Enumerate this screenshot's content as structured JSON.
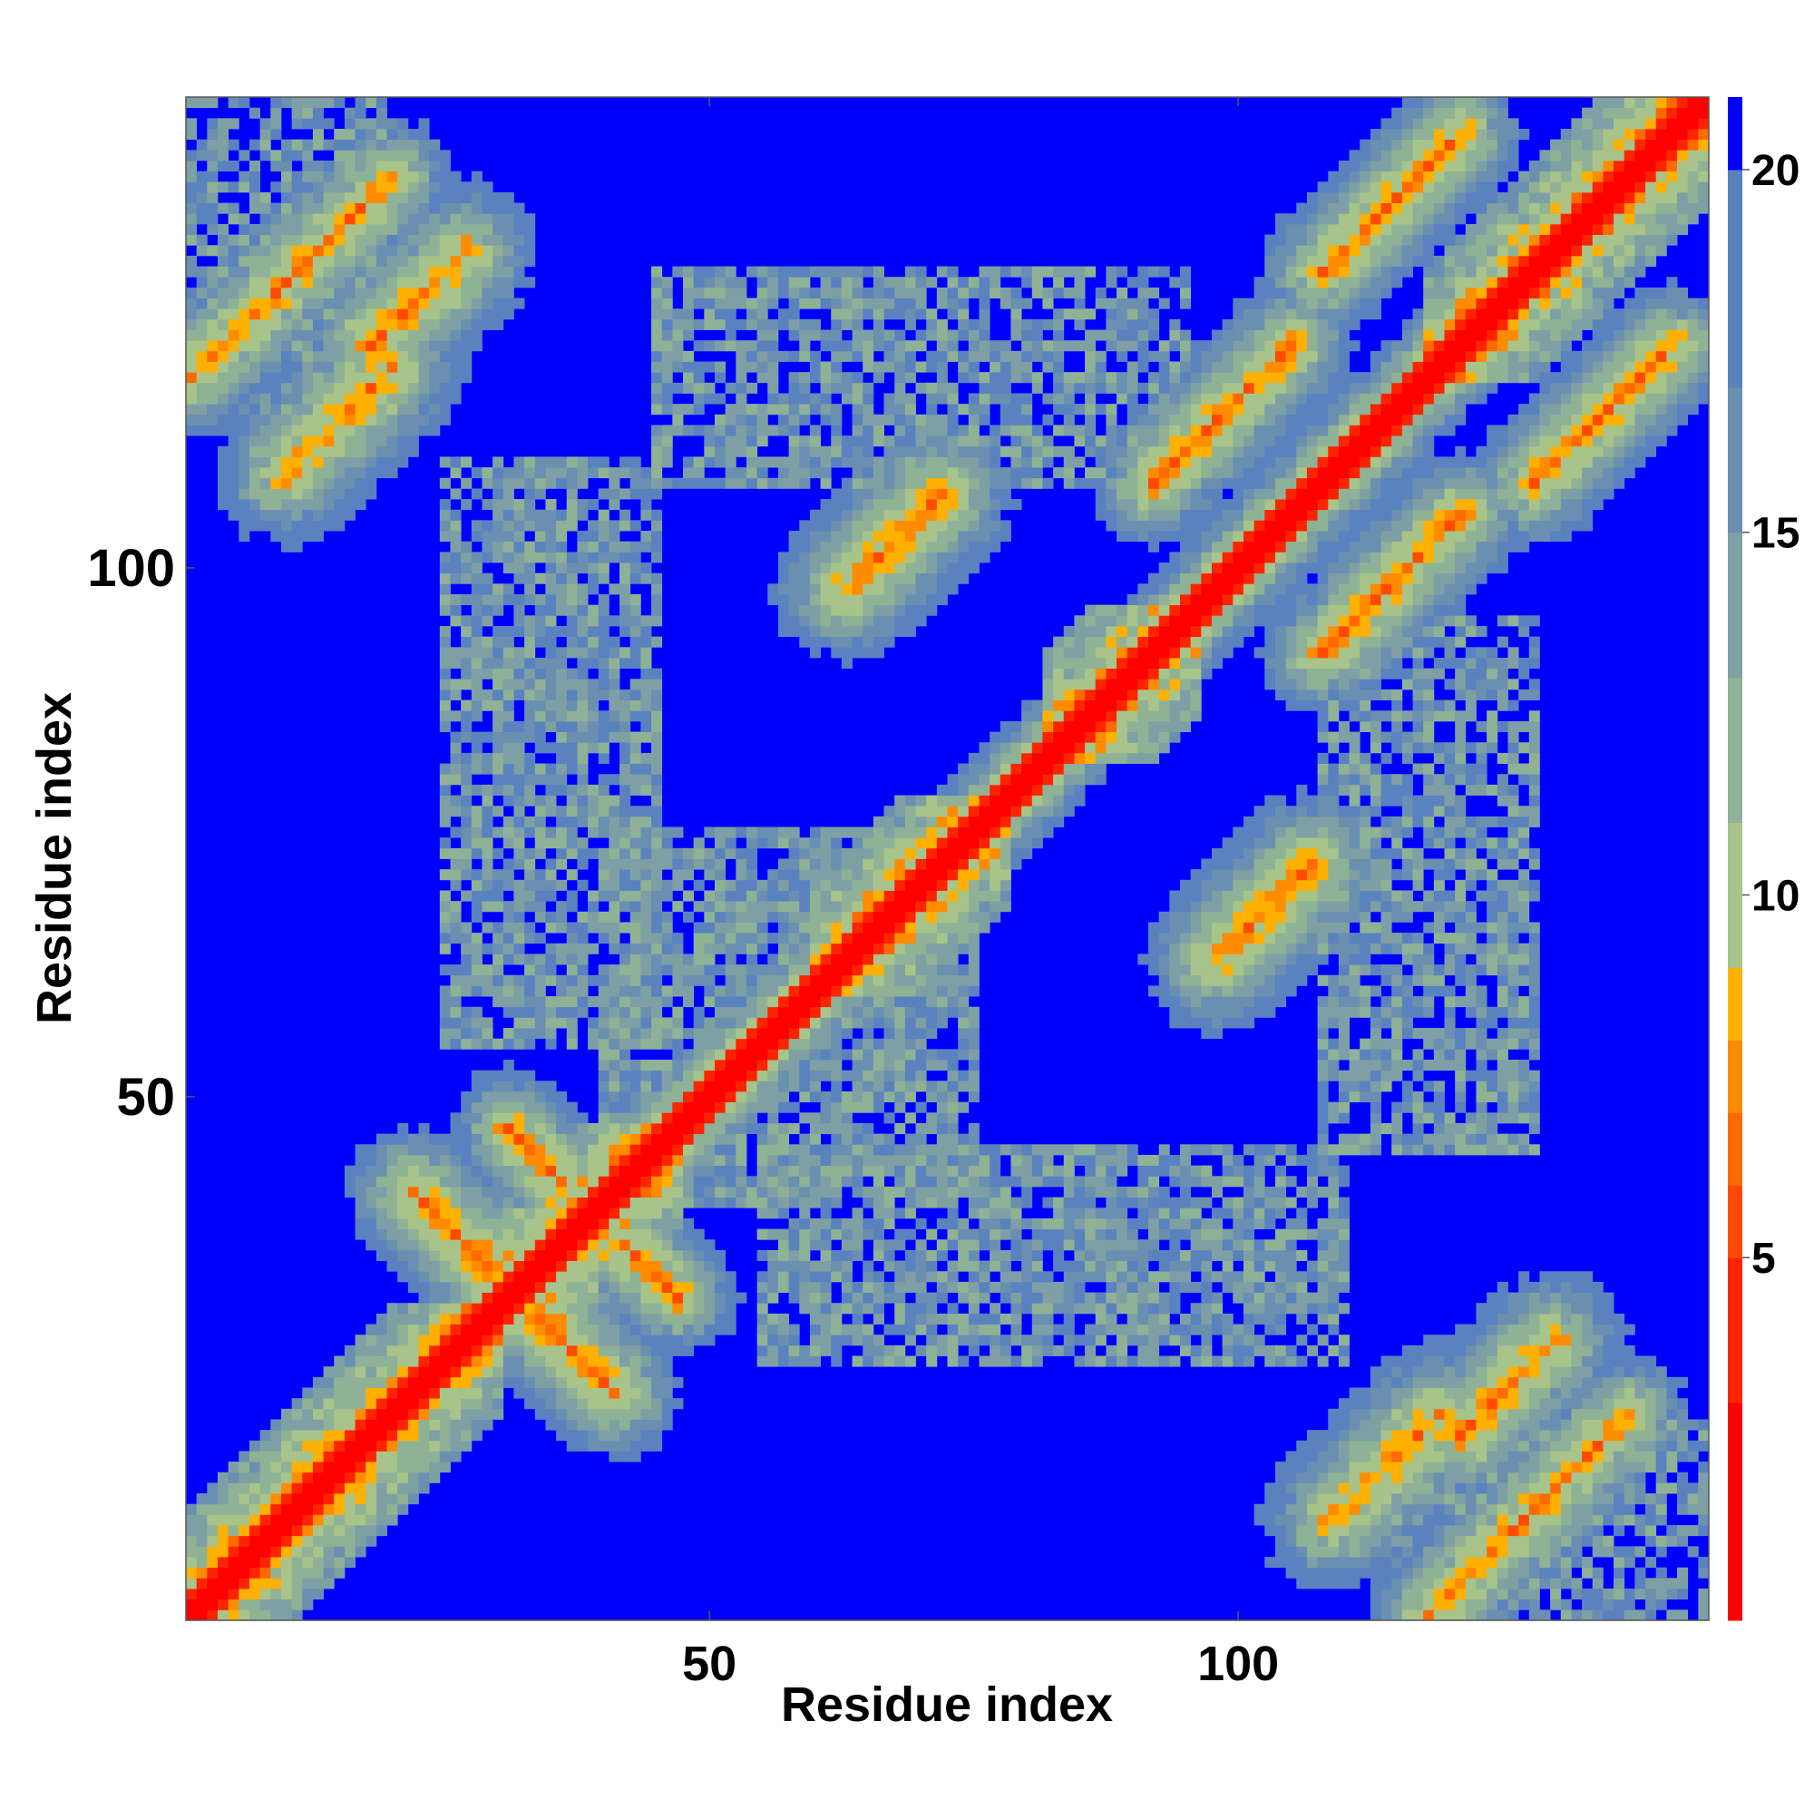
{
  "chart_data": {
    "type": "heatmap",
    "description_hidden": false,
    "xlabel": "Residue index",
    "ylabel": "Residue index",
    "x_ticks": [
      "50",
      "100"
    ],
    "y_ticks": [
      "50",
      "100"
    ],
    "x_tick_values": [
      50,
      100
    ],
    "y_tick_values": [
      50,
      100
    ],
    "xlim": [
      1,
      144
    ],
    "ylim": [
      1,
      144
    ],
    "n_residues": 144,
    "colorbar": {
      "ticks": [
        "5",
        "10",
        "15",
        "20"
      ],
      "tick_values": [
        5,
        10,
        15,
        20
      ],
      "range": [
        0,
        21
      ],
      "colors": [
        "#ff0000",
        "#ff2400",
        "#ff4a00",
        "#ff6a00",
        "#ff8c00",
        "#ffb000",
        "#a8c48a",
        "#8fb296",
        "#7ea0a4",
        "#6a8fb0",
        "#5a82be",
        "#0000ff"
      ]
    },
    "grid": false,
    "legend": "colorbar-right",
    "contact_features": [
      {
        "kind": "diagonal",
        "width": 2.2
      },
      {
        "kind": "helix",
        "start": 1,
        "end": 30,
        "width": 4
      },
      {
        "kind": "helix",
        "start": 31,
        "end": 47,
        "width": 3.5
      },
      {
        "kind": "helix",
        "start": 60,
        "end": 78,
        "width": 4.5
      },
      {
        "kind": "helix",
        "start": 82,
        "end": 96,
        "width": 4
      },
      {
        "kind": "helix",
        "start": 118,
        "end": 144,
        "width": 3.5
      },
      {
        "kind": "anti",
        "i0": 22,
        "j0": 34,
        "len": 8,
        "width": 3.5
      },
      {
        "kind": "anti",
        "i0": 31,
        "j0": 42,
        "len": 6,
        "width": 3
      },
      {
        "kind": "para",
        "i0": 18,
        "j0": 121,
        "len": 10,
        "width": 3.5
      },
      {
        "kind": "para",
        "i0": 109,
        "j0": 10,
        "len": 11,
        "width": 3.5
      },
      {
        "kind": "para",
        "i0": 1,
        "j0": 118,
        "len": 20,
        "width": 3
      },
      {
        "kind": "para",
        "i0": 108,
        "j0": 128,
        "len": 14,
        "width": 3
      },
      {
        "kind": "para",
        "i0": 128,
        "j0": 108,
        "len": 14,
        "width": 3
      },
      {
        "kind": "para",
        "i0": 63,
        "j0": 98,
        "len": 10,
        "width": 3.5
      },
      {
        "kind": "para",
        "i0": 98,
        "j0": 63,
        "len": 10,
        "width": 3.5
      },
      {
        "kind": "para",
        "i0": 92,
        "j0": 108,
        "len": 14,
        "width": 3
      },
      {
        "kind": "para",
        "i0": 108,
        "j0": 92,
        "len": 14,
        "width": 3
      },
      {
        "kind": "block",
        "i0": 25,
        "i1": 45,
        "j0": 55,
        "j1": 110,
        "density": 0.55
      },
      {
        "kind": "block",
        "i0": 55,
        "i1": 110,
        "j0": 25,
        "j1": 45,
        "density": 0.55
      },
      {
        "kind": "block",
        "i0": 40,
        "i1": 75,
        "j0": 40,
        "j1": 75,
        "density": 0.6
      },
      {
        "kind": "block",
        "i0": 45,
        "i1": 95,
        "j0": 108,
        "j1": 128,
        "density": 0.5
      },
      {
        "kind": "block",
        "i0": 108,
        "i1": 128,
        "j0": 45,
        "j1": 95,
        "density": 0.5
      },
      {
        "kind": "block",
        "i0": 115,
        "i1": 144,
        "j0": 1,
        "j1": 20,
        "density": 0.45
      },
      {
        "kind": "block",
        "i0": 1,
        "i1": 20,
        "j0": 115,
        "j1": 144,
        "density": 0.45
      }
    ]
  }
}
